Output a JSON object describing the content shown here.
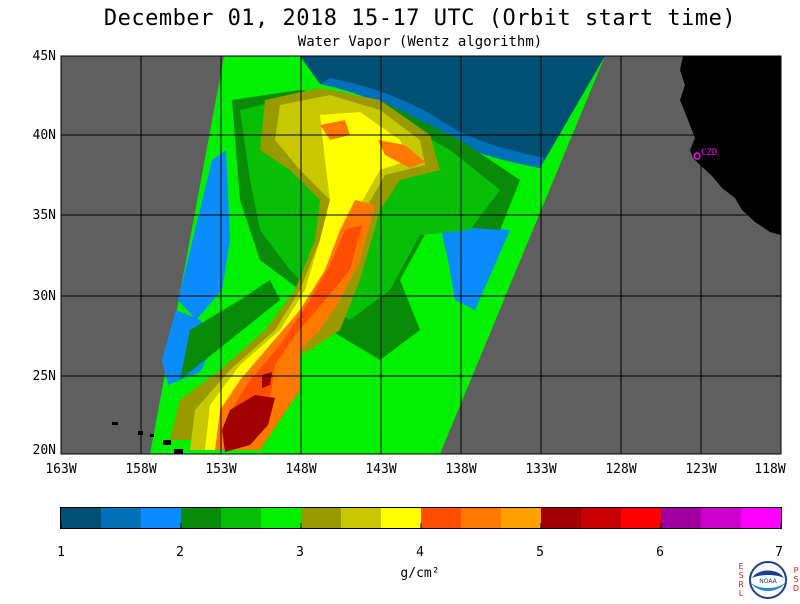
{
  "header": {
    "title": "December 01, 2018  15-17 UTC  (Orbit start time)",
    "subtitle": "Water Vapor (Wentz algorithm)"
  },
  "map": {
    "lat_labels": [
      "45N",
      "40N",
      "35N",
      "30N",
      "25N",
      "20N"
    ],
    "lon_labels": [
      "163W",
      "158W",
      "153W",
      "148W",
      "143W",
      "138W",
      "133W",
      "128W",
      "123W",
      "118W"
    ],
    "lat_range": [
      20,
      45
    ],
    "lon_range": [
      -163,
      -118
    ],
    "station_label": "CZD",
    "colors": {
      "no_data": "#5f5f5f",
      "land": "#000000",
      "grid": "#000000",
      "station": "#ff00ff"
    }
  },
  "colorbar": {
    "ticks": [
      "1",
      "2",
      "3",
      "4",
      "5",
      "6",
      "7"
    ],
    "units": "g/cm²",
    "range": [
      1,
      7
    ],
    "colors": [
      "#004f74",
      "#0070b8",
      "#0a8cff",
      "#088c08",
      "#06bf06",
      "#00f000",
      "#999900",
      "#c8c800",
      "#ffff00",
      "#ff4e00",
      "#ff7800",
      "#ffa000",
      "#a00000",
      "#c80000",
      "#ff0000",
      "#a000a0",
      "#cc00cc",
      "#ff00ff"
    ]
  },
  "logo": {
    "left_text": "ESRL",
    "right_text": "PSD",
    "center_text": "NOAA"
  }
}
